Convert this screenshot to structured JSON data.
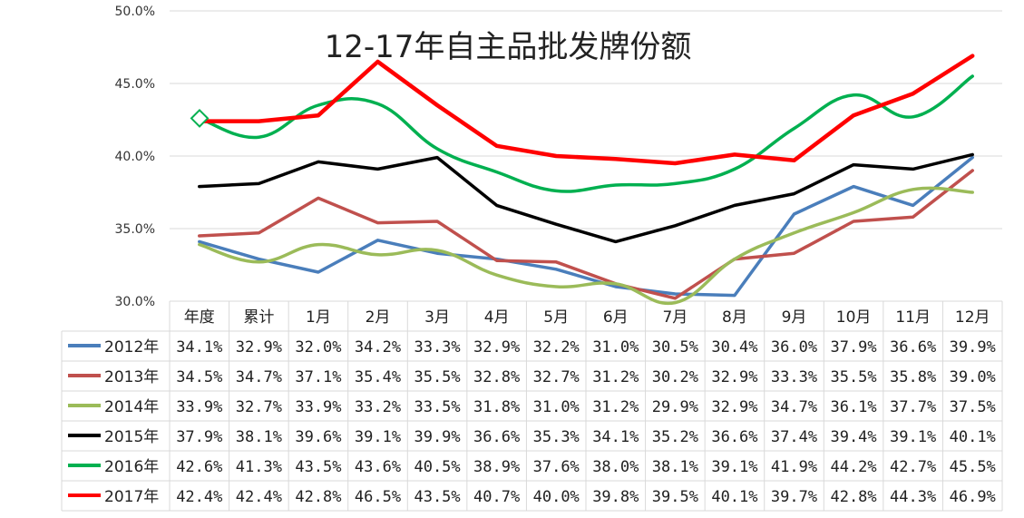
{
  "chart_data": {
    "type": "line",
    "title": "12-17年自主品批发牌份额",
    "categories": [
      "年度",
      "累计",
      "1月",
      "2月",
      "3月",
      "4月",
      "5月",
      "6月",
      "7月",
      "8月",
      "9月",
      "10月",
      "11月",
      "12月"
    ],
    "ylim": [
      30,
      50
    ],
    "yticks": [
      "30.0%",
      "35.0%",
      "40.0%",
      "45.0%",
      "50.0%"
    ],
    "ytick_values": [
      30,
      35,
      40,
      45,
      50
    ],
    "grid": true,
    "legend": "data-table",
    "series": [
      {
        "name": "2012年",
        "color": "#4a7ebb",
        "values": [
          34.1,
          32.9,
          32.0,
          34.2,
          33.3,
          32.9,
          32.2,
          31.0,
          30.5,
          30.4,
          36.0,
          37.9,
          36.6,
          39.9
        ],
        "labels": [
          "34.1%",
          "32.9%",
          "32.0%",
          "34.2%",
          "33.3%",
          "32.9%",
          "32.2%",
          "31.0%",
          "30.5%",
          "30.4%",
          "36.0%",
          "37.9%",
          "36.6%",
          "39.9%"
        ]
      },
      {
        "name": "2013年",
        "color": "#c0504d",
        "values": [
          34.5,
          34.7,
          37.1,
          35.4,
          35.5,
          32.8,
          32.7,
          31.2,
          30.2,
          32.9,
          33.3,
          35.5,
          35.8,
          39.0
        ],
        "labels": [
          "34.5%",
          "34.7%",
          "37.1%",
          "35.4%",
          "35.5%",
          "32.8%",
          "32.7%",
          "31.2%",
          "30.2%",
          "32.9%",
          "33.3%",
          "35.5%",
          "35.8%",
          "39.0%"
        ]
      },
      {
        "name": "2014年",
        "color": "#9bbb59",
        "values": [
          33.9,
          32.7,
          33.9,
          33.2,
          33.5,
          31.8,
          31.0,
          31.2,
          29.9,
          32.9,
          34.7,
          36.1,
          37.7,
          37.5
        ],
        "labels": [
          "33.9%",
          "32.7%",
          "33.9%",
          "33.2%",
          "33.5%",
          "31.8%",
          "31.0%",
          "31.2%",
          "29.9%",
          "32.9%",
          "34.7%",
          "36.1%",
          "37.7%",
          "37.5%"
        ]
      },
      {
        "name": "2015年",
        "color": "#000000",
        "values": [
          37.9,
          38.1,
          39.6,
          39.1,
          39.9,
          36.6,
          35.3,
          34.1,
          35.2,
          36.6,
          37.4,
          39.4,
          39.1,
          40.1
        ],
        "labels": [
          "37.9%",
          "38.1%",
          "39.6%",
          "39.1%",
          "39.9%",
          "36.6%",
          "35.3%",
          "34.1%",
          "35.2%",
          "36.6%",
          "37.4%",
          "39.4%",
          "39.1%",
          "40.1%"
        ]
      },
      {
        "name": "2016年",
        "color": "#00b050",
        "values": [
          42.6,
          41.3,
          43.5,
          43.6,
          40.5,
          38.9,
          37.6,
          38.0,
          38.1,
          39.1,
          41.9,
          44.2,
          42.7,
          45.5
        ],
        "labels": [
          "42.6%",
          "41.3%",
          "43.5%",
          "43.6%",
          "40.5%",
          "38.9%",
          "37.6%",
          "38.0%",
          "38.1%",
          "39.1%",
          "41.9%",
          "44.2%",
          "42.7%",
          "45.5%"
        ]
      },
      {
        "name": "2017年",
        "color": "#ff0000",
        "values": [
          42.4,
          42.4,
          42.8,
          46.5,
          43.5,
          40.7,
          40.0,
          39.8,
          39.5,
          40.1,
          39.7,
          42.8,
          44.3,
          46.9
        ],
        "labels": [
          "42.4%",
          "42.4%",
          "42.8%",
          "46.5%",
          "43.5%",
          "40.7%",
          "40.0%",
          "39.8%",
          "39.5%",
          "40.1%",
          "39.7%",
          "42.8%",
          "44.3%",
          "46.9%"
        ]
      }
    ]
  }
}
